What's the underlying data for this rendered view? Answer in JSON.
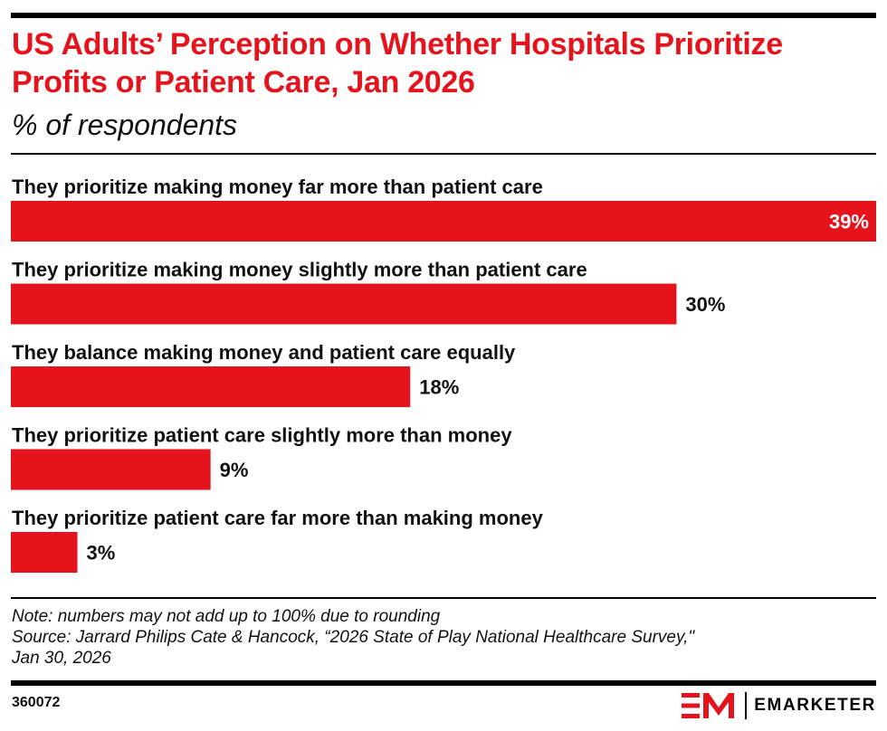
{
  "header": {
    "title": "US Adults’ Perception on Whether Hospitals Prioritize Profits or Patient Care, Jan 2026",
    "subtitle": "% of respondents"
  },
  "chart_data": {
    "type": "bar",
    "orientation": "horizontal",
    "categories": [
      "They prioritize making money far more than patient care",
      "They prioritize making money slightly more than patient care",
      "They balance making money and patient care equally",
      "They prioritize patient care slightly more than money",
      "They prioritize patient care far more than making money"
    ],
    "values": [
      39,
      30,
      18,
      9,
      3
    ],
    "value_labels": [
      "39%",
      "30%",
      "18%",
      "9%",
      "3%"
    ],
    "unit": "%",
    "xlim": [
      0,
      39
    ],
    "bar_color": "#e5131c",
    "grid": false,
    "legend": "none"
  },
  "footer": {
    "note": "Note: numbers may not add up to 100% due to rounding",
    "source_line1": "Source: Jarrard Philips Cate & Hancock, “2026 State of Play National Healthcare Survey,\"",
    "source_line2": "Jan 30, 2026",
    "chart_id": "360072",
    "brand": "EMARKETER",
    "brand_color": "#e5131c"
  }
}
